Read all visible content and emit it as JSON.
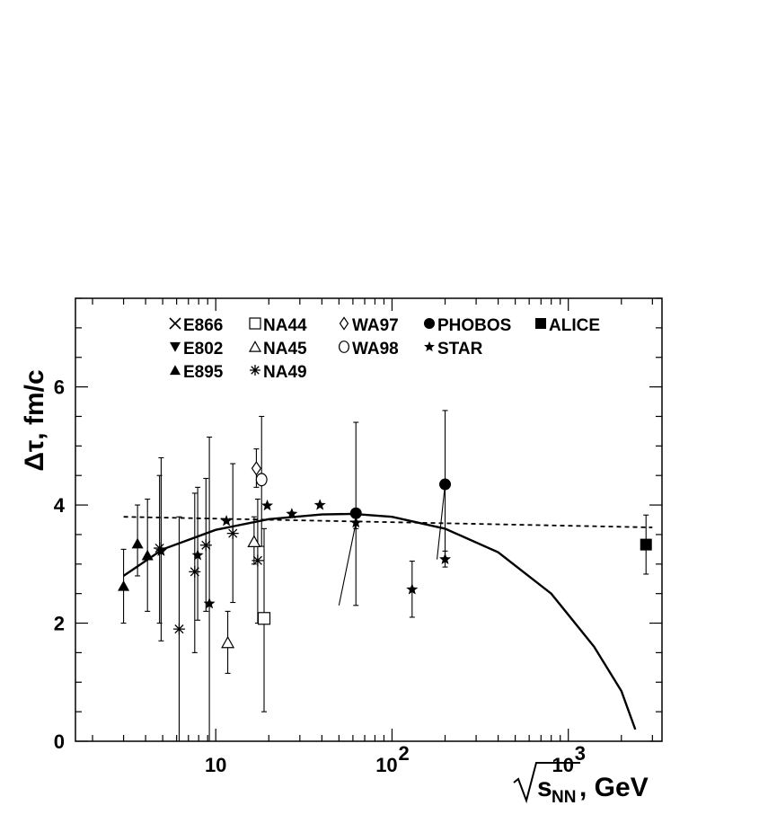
{
  "chart_data": {
    "type": "scatter",
    "title": "",
    "ylabel": "Δτ, fm/c",
    "xlabel_unit": ", GeV",
    "xlabel_math": "s",
    "xlabel_subscript": "NN",
    "x_scale": "log",
    "xlim": [
      1.6,
      3400
    ],
    "ylim": [
      0,
      7.5
    ],
    "y_ticks": [
      0,
      2,
      4,
      6
    ],
    "y_tick_labels": [
      "0",
      "2",
      "4",
      "6"
    ],
    "x_ticks": [
      10,
      100,
      1000
    ],
    "x_tick_labels": [
      {
        "base": "10",
        "exp": ""
      },
      {
        "base": "10",
        "exp": "2"
      },
      {
        "base": "10",
        "exp": "3"
      }
    ],
    "legend_placement": "top",
    "series": [
      {
        "name": "E866",
        "marker": "x",
        "points": []
      },
      {
        "name": "E802",
        "marker": "triangle-down-filled",
        "points": []
      },
      {
        "name": "E895",
        "marker": "triangle-up-filled",
        "points": [
          {
            "x": 3.0,
            "y": 2.63,
            "lo": 2.0,
            "hi": 3.25
          },
          {
            "x": 3.6,
            "y": 3.35,
            "lo": 2.8,
            "hi": 4.0
          },
          {
            "x": 4.1,
            "y": 3.15,
            "lo": 2.2,
            "hi": 4.1
          }
        ]
      },
      {
        "name": "NA44",
        "marker": "square-open",
        "points": [
          {
            "x": 18.8,
            "y": 2.08,
            "lo": 0.5,
            "hi": 3.6
          }
        ]
      },
      {
        "name": "NA45",
        "marker": "triangle-up-open",
        "points": [
          {
            "x": 11.7,
            "y": 1.67,
            "lo": 1.15,
            "hi": 2.2
          },
          {
            "x": 16.5,
            "y": 3.38,
            "lo": 3.0,
            "hi": 3.8
          }
        ]
      },
      {
        "name": "NA49",
        "marker": "asterisk",
        "points": [
          {
            "x": 4.8,
            "y": 3.27,
            "lo": 2.0,
            "hi": 4.5
          },
          {
            "x": 6.2,
            "y": 1.9,
            "lo": 0.0,
            "hi": 3.8
          },
          {
            "x": 7.6,
            "y": 2.87,
            "lo": 1.5,
            "hi": 4.2
          },
          {
            "x": 8.8,
            "y": 3.32,
            "lo": 2.2,
            "hi": 4.45
          },
          {
            "x": 12.5,
            "y": 3.52,
            "lo": 2.35,
            "hi": 4.7
          },
          {
            "x": 17.3,
            "y": 3.06,
            "lo": 2.0,
            "hi": 4.1
          }
        ]
      },
      {
        "name": "WA97",
        "marker": "diamond-open",
        "points": [
          {
            "x": 17.0,
            "y": 4.62,
            "lo": 4.3,
            "hi": 4.95
          }
        ]
      },
      {
        "name": "WA98",
        "marker": "circle-open",
        "points": [
          {
            "x": 18.2,
            "y": 4.43,
            "lo": 3.3,
            "hi": 5.5
          }
        ]
      },
      {
        "name": "PHOBOS",
        "marker": "circle-filled",
        "points": [
          {
            "x": 62.4,
            "y": 3.86,
            "lo": 2.3,
            "hi": 5.4
          },
          {
            "x": 200,
            "y": 4.35,
            "lo": 3.1,
            "hi": 5.6
          }
        ]
      },
      {
        "name": "STAR",
        "marker": "star",
        "points": [
          {
            "x": 4.9,
            "y": 3.22,
            "lo": 1.7,
            "hi": 4.8
          },
          {
            "x": 7.9,
            "y": 3.15,
            "lo": 2.05,
            "hi": 4.3
          },
          {
            "x": 9.2,
            "y": 2.33,
            "lo": 0.0,
            "hi": 5.15
          },
          {
            "x": 11.5,
            "y": 3.73,
            "lo": 3.73,
            "hi": 3.73
          },
          {
            "x": 19.6,
            "y": 3.99,
            "lo": 3.99,
            "hi": 3.99
          },
          {
            "x": 27,
            "y": 3.85,
            "lo": 3.85,
            "hi": 3.85
          },
          {
            "x": 39,
            "y": 4.0,
            "lo": 4.0,
            "hi": 4.0
          },
          {
            "x": 62.4,
            "y": 3.7,
            "lo": 3.6,
            "hi": 3.8
          },
          {
            "x": 130,
            "y": 2.57,
            "lo": 2.1,
            "hi": 3.05
          },
          {
            "x": 200,
            "y": 3.08,
            "lo": 2.95,
            "hi": 3.22
          }
        ]
      },
      {
        "name": "ALICE",
        "marker": "square-filled",
        "points": [
          {
            "x": 2760,
            "y": 3.33,
            "lo": 2.83,
            "hi": 3.83
          }
        ]
      }
    ],
    "curves": [
      {
        "style": "solid",
        "points": [
          [
            3,
            2.8
          ],
          [
            5,
            3.25
          ],
          [
            10,
            3.58
          ],
          [
            20,
            3.76
          ],
          [
            40,
            3.84
          ],
          [
            60,
            3.85
          ],
          [
            100,
            3.8
          ],
          [
            200,
            3.6
          ],
          [
            400,
            3.2
          ],
          [
            800,
            2.5
          ],
          [
            1400,
            1.6
          ],
          [
            2000,
            0.85
          ],
          [
            2400,
            0.2
          ]
        ]
      },
      {
        "style": "dashed",
        "points": [
          [
            3,
            3.8
          ],
          [
            3000,
            3.62
          ]
        ]
      }
    ],
    "connectors": [
      {
        "from": [
          62.4,
          3.7
        ],
        "to": [
          50,
          2.3
        ]
      },
      {
        "from": [
          200,
          4.35
        ],
        "to": [
          180,
          3.08
        ]
      }
    ]
  }
}
